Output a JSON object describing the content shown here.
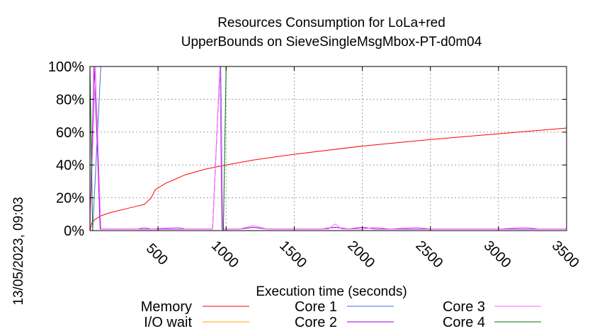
{
  "chart_data": {
    "type": "line",
    "title_lines": [
      "Resources Consumption for LoLa+red",
      "UpperBounds on SieveSingleMsgMbox-PT-d0m04"
    ],
    "xlabel": "Execution time (seconds)",
    "ylabel": "",
    "timestamp": "13/05/2023, 09:03",
    "xlim": [
      0,
      3500
    ],
    "ylim": [
      0,
      100
    ],
    "x_ticks": [
      500,
      1000,
      1500,
      2000,
      2500,
      3000,
      3500
    ],
    "x_tick_labels": [
      "500",
      "1000",
      "1500",
      "2000",
      "2500",
      "3000",
      "3500"
    ],
    "y_ticks": [
      0,
      20,
      40,
      60,
      80,
      100
    ],
    "y_tick_labels": [
      "0%",
      "20%",
      "40%",
      "60%",
      "80%",
      "100%"
    ],
    "grid": true,
    "legend_position": "bottom",
    "series": [
      {
        "name": "Memory",
        "color": "#ff0000",
        "points": [
          [
            0,
            0
          ],
          [
            15,
            5
          ],
          [
            40,
            7
          ],
          [
            80,
            9
          ],
          [
            150,
            11
          ],
          [
            250,
            13
          ],
          [
            350,
            15
          ],
          [
            400,
            16
          ],
          [
            450,
            20
          ],
          [
            480,
            25
          ],
          [
            560,
            29
          ],
          [
            700,
            34
          ],
          [
            850,
            37.5
          ],
          [
            1000,
            40
          ],
          [
            1200,
            43
          ],
          [
            1500,
            46.5
          ],
          [
            2000,
            51.5
          ],
          [
            2500,
            55.5
          ],
          [
            3000,
            59
          ],
          [
            3500,
            62.5
          ]
        ]
      },
      {
        "name": "I/O wait",
        "color": "#ffa500",
        "points": [
          [
            0,
            0
          ],
          [
            3500,
            0
          ]
        ]
      },
      {
        "name": "Core 1",
        "color": "#4070d0",
        "points": [
          [
            0,
            0
          ],
          [
            20,
            0
          ],
          [
            50,
            50
          ],
          [
            80,
            100
          ],
          [
            960,
            100
          ],
          [
            975,
            0
          ],
          [
            3500,
            0
          ]
        ]
      },
      {
        "name": "Core 2",
        "color": "#9400d3",
        "points": [
          [
            0,
            1
          ],
          [
            30,
            100
          ],
          [
            55,
            50
          ],
          [
            75,
            1
          ],
          [
            900,
            1
          ],
          [
            955,
            100
          ],
          [
            970,
            1
          ],
          [
            1100,
            1
          ],
          [
            1200,
            2
          ],
          [
            1300,
            1
          ],
          [
            1500,
            1
          ],
          [
            1700,
            1
          ],
          [
            1800,
            2
          ],
          [
            1900,
            1
          ],
          [
            2000,
            2
          ],
          [
            2100,
            1
          ],
          [
            2500,
            1
          ],
          [
            3000,
            1
          ],
          [
            3500,
            1
          ]
        ]
      },
      {
        "name": "Core 3",
        "color": "#ff66ff",
        "points": [
          [
            0,
            1
          ],
          [
            40,
            100
          ],
          [
            60,
            50
          ],
          [
            80,
            1
          ],
          [
            200,
            1
          ],
          [
            350,
            1
          ],
          [
            400,
            2
          ],
          [
            450,
            1
          ],
          [
            650,
            2
          ],
          [
            700,
            1
          ],
          [
            900,
            1
          ],
          [
            955,
            100
          ],
          [
            975,
            1
          ],
          [
            1100,
            1
          ],
          [
            1200,
            3
          ],
          [
            1300,
            1
          ],
          [
            1500,
            1
          ],
          [
            1750,
            1
          ],
          [
            1800,
            4
          ],
          [
            1850,
            1
          ],
          [
            2000,
            1
          ],
          [
            2100,
            2
          ],
          [
            2200,
            1
          ],
          [
            2400,
            2
          ],
          [
            2500,
            1
          ],
          [
            3000,
            1
          ],
          [
            3200,
            2
          ],
          [
            3300,
            1
          ],
          [
            3500,
            1
          ]
        ]
      },
      {
        "name": "Core 4",
        "color": "#007000",
        "points": [
          [
            0,
            100
          ],
          [
            20,
            0
          ],
          [
            980,
            0
          ],
          [
            1000,
            100
          ],
          [
            3500,
            100
          ]
        ]
      }
    ]
  }
}
